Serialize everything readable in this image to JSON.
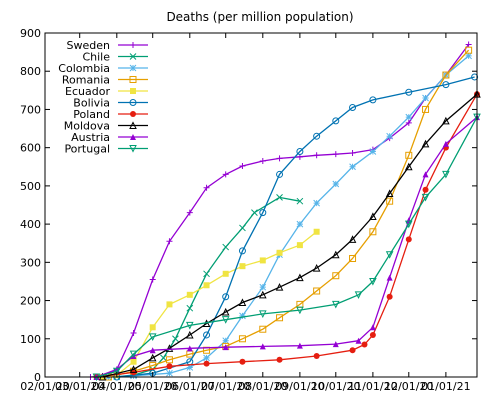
{
  "chart_data": {
    "type": "line",
    "title": "Deaths (per million population)",
    "xlabel": "",
    "ylabel": "",
    "ylim": [
      0,
      900
    ],
    "y_ticks": [
      0,
      100,
      200,
      300,
      400,
      500,
      600,
      700,
      800,
      900
    ],
    "x_ticks": [
      "02/01/20",
      "03/01/20",
      "04/01/20",
      "05/01/20",
      "06/01/20",
      "07/01/20",
      "08/01/20",
      "09/01/20",
      "10/01/20",
      "11/01/20",
      "12/01/20",
      "01/01/21"
    ],
    "x_tick_labels": [
      "02/01/20",
      "03/01/20",
      "04/01/20",
      "05/01/20",
      "06/01/20",
      "07/01/20",
      "08/01/20",
      "09/01/20",
      "10/01/20",
      "11/01/20",
      "12/01/20",
      "01/01/21"
    ],
    "xlim": [
      "02/01/20",
      "01/27/21"
    ],
    "grid": false,
    "legend_position": "top-left",
    "series": [
      {
        "name": "Sweden",
        "color": "#9400d3",
        "marker": "plus",
        "x": [
          "03/10/20",
          "03/20/20",
          "04/01/20",
          "04/15/20",
          "05/01/20",
          "05/15/20",
          "06/01/20",
          "06/15/20",
          "07/01/20",
          "07/15/20",
          "08/01/20",
          "08/15/20",
          "09/01/20",
          "09/15/20",
          "10/01/20",
          "10/15/20",
          "11/01/20",
          "11/15/20",
          "12/01/20",
          "12/15/20",
          "01/01/21",
          "01/20/21"
        ],
        "y": [
          0,
          2,
          20,
          115,
          255,
          355,
          430,
          495,
          530,
          552,
          565,
          572,
          576,
          580,
          583,
          586,
          595,
          625,
          665,
          730,
          790,
          870
        ]
      },
      {
        "name": "Chile",
        "color": "#009e73",
        "marker": "x",
        "x": [
          "03/20/20",
          "04/01/20",
          "04/15/20",
          "05/01/20",
          "05/10/20",
          "05/20/20",
          "06/01/20",
          "06/15/20",
          "07/01/20",
          "07/15/20",
          "07/25/20",
          "08/15/20",
          "09/01/20"
        ],
        "y": [
          0,
          1,
          5,
          20,
          50,
          100,
          180,
          270,
          340,
          390,
          430,
          470,
          460
        ]
      },
      {
        "name": "Colombia",
        "color": "#56b4e9",
        "marker": "asterisk",
        "x": [
          "03/25/20",
          "04/15/20",
          "05/15/20",
          "06/01/20",
          "06/15/20",
          "07/01/20",
          "07/15/20",
          "08/01/20",
          "08/15/20",
          "09/01/20",
          "09/15/20",
          "10/01/20",
          "10/15/20",
          "11/01/20",
          "11/15/20",
          "12/01/20",
          "12/15/20",
          "01/01/21",
          "01/20/21"
        ],
        "y": [
          0,
          3,
          10,
          25,
          50,
          95,
          160,
          235,
          320,
          400,
          455,
          505,
          550,
          590,
          630,
          680,
          730,
          790,
          840
        ]
      },
      {
        "name": "Romania",
        "color": "#e69f00",
        "marker": "square",
        "x": [
          "03/25/20",
          "04/15/20",
          "05/01/20",
          "05/15/20",
          "06/01/20",
          "06/15/20",
          "07/01/20",
          "07/15/20",
          "08/01/20",
          "08/15/20",
          "09/01/20",
          "09/15/20",
          "10/01/20",
          "10/15/20",
          "11/01/20",
          "11/15/20",
          "12/01/20",
          "12/15/20",
          "01/01/21",
          "01/20/21"
        ],
        "y": [
          0,
          15,
          30,
          45,
          60,
          70,
          80,
          100,
          125,
          155,
          190,
          225,
          265,
          310,
          380,
          460,
          580,
          700,
          790,
          855
        ]
      },
      {
        "name": "Ecuador",
        "color": "#f0e442",
        "marker": "filled-square",
        "x": [
          "03/20/20",
          "04/01/20",
          "04/15/20",
          "05/01/20",
          "05/15/20",
          "06/01/20",
          "06/15/20",
          "07/01/20",
          "07/15/20",
          "08/01/20",
          "08/15/20",
          "09/01/20",
          "09/15/20"
        ],
        "y": [
          0,
          5,
          40,
          130,
          190,
          215,
          240,
          270,
          290,
          305,
          325,
          345,
          380
        ]
      },
      {
        "name": "Bolivia",
        "color": "#0072b2",
        "marker": "circle",
        "x": [
          "04/01/20",
          "05/01/20",
          "06/01/20",
          "06/15/20",
          "07/01/20",
          "07/15/20",
          "08/01/20",
          "08/15/20",
          "09/01/20",
          "09/15/20",
          "10/01/20",
          "10/15/20",
          "11/01/20",
          "12/01/20",
          "01/01/21",
          "01/25/21"
        ],
        "y": [
          0,
          10,
          40,
          110,
          210,
          330,
          430,
          530,
          590,
          630,
          670,
          705,
          725,
          745,
          765,
          785
        ]
      },
      {
        "name": "Poland",
        "color": "#e51e10",
        "marker": "filled-circle",
        "x": [
          "03/15/20",
          "04/15/20",
          "05/15/20",
          "06/15/20",
          "07/15/20",
          "08/15/20",
          "09/15/20",
          "10/15/20",
          "10/25/20",
          "11/01/20",
          "11/15/20",
          "12/01/20",
          "12/15/20",
          "01/01/21",
          "01/27/21"
        ],
        "y": [
          0,
          12,
          28,
          35,
          40,
          45,
          55,
          70,
          85,
          110,
          210,
          360,
          490,
          600,
          740
        ]
      },
      {
        "name": "Moldova",
        "color": "#000000",
        "marker": "triangle",
        "x": [
          "03/20/20",
          "04/15/20",
          "05/01/20",
          "05/15/20",
          "06/01/20",
          "06/15/20",
          "07/01/20",
          "07/15/20",
          "08/01/20",
          "08/15/20",
          "09/01/20",
          "09/15/20",
          "10/01/20",
          "10/15/20",
          "11/01/20",
          "11/15/20",
          "12/01/20",
          "12/15/20",
          "01/01/21",
          "01/27/21"
        ],
        "y": [
          0,
          20,
          50,
          75,
          110,
          140,
          170,
          195,
          215,
          235,
          260,
          285,
          320,
          360,
          420,
          480,
          550,
          610,
          670,
          740
        ]
      },
      {
        "name": "Austria",
        "color": "#9400d3",
        "marker": "filled-triangle",
        "x": [
          "03/15/20",
          "04/01/20",
          "04/15/20",
          "05/01/20",
          "06/01/20",
          "07/01/20",
          "08/01/20",
          "09/01/20",
          "10/01/20",
          "10/20/20",
          "11/01/20",
          "11/15/20",
          "12/01/20",
          "12/15/20",
          "01/01/21",
          "01/27/21"
        ],
        "y": [
          0,
          20,
          55,
          70,
          75,
          78,
          80,
          82,
          86,
          95,
          130,
          260,
          410,
          530,
          610,
          680
        ]
      },
      {
        "name": "Portugal",
        "color": "#009e73",
        "marker": "triangle-down",
        "x": [
          "03/15/20",
          "04/01/20",
          "04/15/20",
          "05/01/20",
          "06/01/20",
          "07/01/20",
          "08/01/20",
          "09/01/20",
          "10/01/20",
          "10/20/20",
          "11/01/20",
          "11/15/20",
          "12/01/20",
          "12/15/20",
          "01/01/21",
          "01/27/21"
        ],
        "y": [
          0,
          15,
          60,
          105,
          135,
          150,
          165,
          175,
          190,
          215,
          250,
          320,
          400,
          470,
          530,
          680
        ]
      }
    ]
  }
}
